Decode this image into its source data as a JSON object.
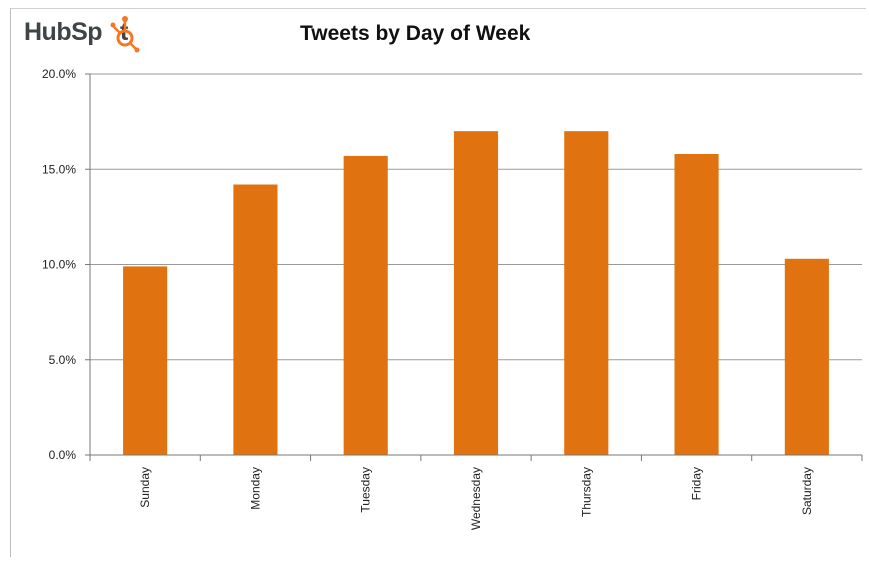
{
  "logo": {
    "text": "HubSpot",
    "accent": "#f57722"
  },
  "chart_data": {
    "type": "bar",
    "title": "Tweets by Day of Week",
    "xlabel": "",
    "ylabel": "",
    "categories": [
      "Sunday",
      "Monday",
      "Tuesday",
      "Wednesday",
      "Thursday",
      "Friday",
      "Saturday"
    ],
    "values": [
      9.9,
      14.2,
      15.7,
      17.0,
      17.0,
      15.8,
      10.3
    ],
    "ylim": [
      0,
      20
    ],
    "yticks": [
      0,
      5,
      10,
      15,
      20
    ],
    "ytick_labels": [
      "0.0%",
      "5.0%",
      "10.0%",
      "15.0%",
      "20.0%"
    ],
    "grid": true,
    "legend": "none",
    "bar_color": "#e07310",
    "grid_color": "#9a9a9a"
  }
}
